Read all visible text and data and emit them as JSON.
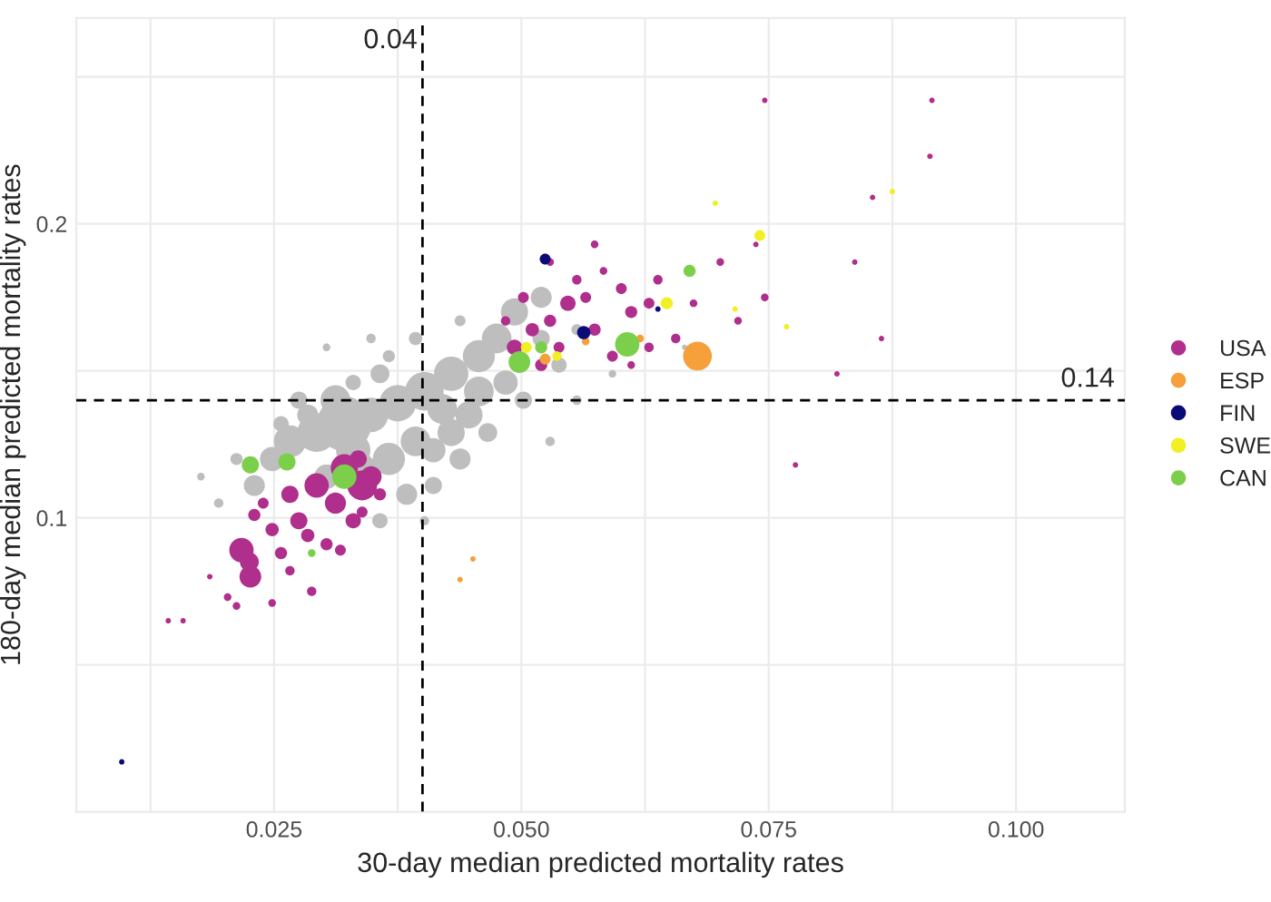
{
  "chart_data": {
    "type": "bubble",
    "xlabel": "30-day median predicted mortality rates",
    "ylabel": "180-day median predicted mortality rates",
    "xlim": [
      0.005,
      0.111
    ],
    "ylim": [
      0.0,
      0.27
    ],
    "xticks": [
      {
        "value": 0.0125,
        "label": null
      },
      {
        "value": 0.025,
        "label": "0.025"
      },
      {
        "value": 0.0375,
        "label": null
      },
      {
        "value": 0.05,
        "label": "0.050"
      },
      {
        "value": 0.0625,
        "label": null
      },
      {
        "value": 0.075,
        "label": "0.075"
      },
      {
        "value": 0.0875,
        "label": null
      },
      {
        "value": 0.1,
        "label": "0.100"
      }
    ],
    "yticks": [
      {
        "value": 0.05,
        "label": null
      },
      0.1,
      {
        "value": 0.15,
        "label": null
      },
      0.2,
      {
        "value": 0.25,
        "label": null
      }
    ],
    "grid": true,
    "legend": "right",
    "marker": "circle",
    "ref_lines": [
      {
        "axis": "x",
        "value": 0.04,
        "label": "0.04",
        "color": "#000000",
        "line_style": "dashed"
      },
      {
        "axis": "y",
        "value": 0.14,
        "label": "0.14",
        "color": "#000000",
        "line_style": "dashed"
      }
    ],
    "series": [
      {
        "color": "#bebebe",
        "x": [
          0.0321,
          0.0293,
          0.0266,
          0.0348,
          0.0375,
          0.0402,
          0.0429,
          0.0457,
          0.0475,
          0.0493,
          0.052,
          0.042,
          0.0393,
          0.0366,
          0.0339,
          0.0303,
          0.0384,
          0.0357,
          0.0411,
          0.0438,
          0.0466,
          0.0502,
          0.0538,
          0.0556,
          0.0248,
          0.023,
          0.0212,
          0.0194,
          0.0275,
          0.033,
          0.0348,
          0.0303,
          0.0411,
          0.0447,
          0.0484,
          0.0402,
          0.0529,
          0.0556,
          0.0592,
          0.0366,
          0.0438,
          0.0393,
          0.0457,
          0.0429,
          0.033,
          0.0284,
          0.052,
          0.0357,
          0.0312,
          0.0257,
          0.0665,
          0.0176
        ],
        "values": [
          0.132,
          0.129,
          0.126,
          0.135,
          0.139,
          0.143,
          0.149,
          0.155,
          0.161,
          0.17,
          0.175,
          0.137,
          0.126,
          0.12,
          0.117,
          0.114,
          0.108,
          0.099,
          0.111,
          0.12,
          0.129,
          0.14,
          0.152,
          0.164,
          0.12,
          0.111,
          0.12,
          0.105,
          0.14,
          0.146,
          0.161,
          0.158,
          0.123,
          0.135,
          0.146,
          0.099,
          0.126,
          0.14,
          0.149,
          0.155,
          0.167,
          0.161,
          0.143,
          0.129,
          0.123,
          0.135,
          0.161,
          0.149,
          0.14,
          0.132,
          0.158,
          0.114
        ],
        "sizes": [
          1.0,
          0.5,
          0.35,
          0.4,
          0.45,
          0.5,
          0.4,
          0.35,
          0.3,
          0.25,
          0.15,
          0.3,
          0.3,
          0.35,
          0.25,
          0.2,
          0.15,
          0.08,
          0.1,
          0.15,
          0.12,
          0.1,
          0.08,
          0.04,
          0.2,
          0.15,
          0.05,
          0.03,
          0.1,
          0.08,
          0.03,
          0.02,
          0.2,
          0.25,
          0.2,
          0.03,
          0.03,
          0.03,
          0.02,
          0.05,
          0.04,
          0.06,
          0.3,
          0.25,
          0.4,
          0.15,
          0.1,
          0.12,
          0.3,
          0.08,
          0.01,
          0.02
        ]
      },
      {
        "name": "USA",
        "color": "#b02e8c",
        "x": [
          0.0293,
          0.0321,
          0.0339,
          0.0312,
          0.0266,
          0.0275,
          0.0248,
          0.023,
          0.0217,
          0.0226,
          0.0225,
          0.0257,
          0.0284,
          0.0303,
          0.033,
          0.0339,
          0.0348,
          0.0335,
          0.0239,
          0.0266,
          0.0212,
          0.0203,
          0.0248,
          0.0288,
          0.0317,
          0.0357,
          0.0185,
          0.0158,
          0.0143,
          0.0493,
          0.0511,
          0.0529,
          0.0547,
          0.0565,
          0.052,
          0.0538,
          0.0574,
          0.0592,
          0.0484,
          0.0502,
          0.0556,
          0.0583,
          0.0529,
          0.0574,
          0.0601,
          0.0611,
          0.0629,
          0.0656,
          0.0629,
          0.0638,
          0.0674,
          0.0719,
          0.0746,
          0.0701,
          0.0737,
          0.0819,
          0.0864,
          0.0837,
          0.0855,
          0.0915,
          0.0913,
          0.0746,
          0.0611,
          0.0777
        ],
        "values": [
          0.111,
          0.117,
          0.111,
          0.105,
          0.108,
          0.099,
          0.096,
          0.101,
          0.089,
          0.08,
          0.085,
          0.088,
          0.094,
          0.091,
          0.099,
          0.102,
          0.114,
          0.12,
          0.105,
          0.082,
          0.07,
          0.073,
          0.071,
          0.075,
          0.089,
          0.108,
          0.08,
          0.065,
          0.065,
          0.158,
          0.164,
          0.167,
          0.173,
          0.175,
          0.152,
          0.158,
          0.164,
          0.155,
          0.167,
          0.175,
          0.181,
          0.184,
          0.187,
          0.193,
          0.178,
          0.17,
          0.173,
          0.161,
          0.158,
          0.181,
          0.173,
          0.167,
          0.175,
          0.187,
          0.193,
          0.149,
          0.161,
          0.187,
          0.209,
          0.242,
          0.223,
          0.242,
          0.152,
          0.118
        ],
        "sizes": [
          0.2,
          0.25,
          0.3,
          0.15,
          0.1,
          0.1,
          0.06,
          0.05,
          0.2,
          0.16,
          0.12,
          0.05,
          0.06,
          0.05,
          0.08,
          0.04,
          0.15,
          0.1,
          0.04,
          0.03,
          0.02,
          0.02,
          0.02,
          0.03,
          0.04,
          0.05,
          0.01,
          0.01,
          0.01,
          0.08,
          0.06,
          0.05,
          0.08,
          0.04,
          0.05,
          0.04,
          0.05,
          0.04,
          0.03,
          0.04,
          0.03,
          0.02,
          0.02,
          0.02,
          0.04,
          0.05,
          0.04,
          0.03,
          0.03,
          0.03,
          0.02,
          0.02,
          0.02,
          0.02,
          0.01,
          0.01,
          0.01,
          0.01,
          0.01,
          0.01,
          0.01,
          0.01,
          0.02,
          0.01
        ]
      },
      {
        "name": "ESP",
        "color": "#f5a03a",
        "x": [
          0.0678,
          0.0524,
          0.0565,
          0.062,
          0.0438,
          0.0451
        ],
        "values": [
          0.155,
          0.154,
          0.16,
          0.161,
          0.079,
          0.086
        ],
        "sizes": [
          0.28,
          0.04,
          0.02,
          0.02,
          0.01,
          0.01
        ]
      },
      {
        "name": "FIN",
        "color": "#0b0b78",
        "x": [
          0.0524,
          0.0563,
          0.0096,
          0.0638
        ],
        "values": [
          0.188,
          0.163,
          0.017,
          0.171
        ],
        "sizes": [
          0.04,
          0.06,
          0.01,
          0.01
        ]
      },
      {
        "name": "SWE",
        "color": "#f0f024",
        "x": [
          0.0647,
          0.0741,
          0.0696,
          0.0875,
          0.0505,
          0.0536,
          0.0768,
          0.0716
        ],
        "values": [
          0.173,
          0.196,
          0.207,
          0.211,
          0.158,
          0.155,
          0.165,
          0.171
        ],
        "sizes": [
          0.05,
          0.04,
          0.01,
          0.01,
          0.04,
          0.03,
          0.01,
          0.01
        ]
      },
      {
        "name": "CAN",
        "color": "#7ccf4b",
        "x": [
          0.0226,
          0.0263,
          0.0321,
          0.0498,
          0.052,
          0.0607,
          0.067,
          0.0288
        ],
        "values": [
          0.118,
          0.119,
          0.114,
          0.153,
          0.158,
          0.159,
          0.184,
          0.088
        ],
        "sizes": [
          0.1,
          0.1,
          0.2,
          0.16,
          0.05,
          0.2,
          0.05,
          0.02
        ]
      }
    ]
  }
}
